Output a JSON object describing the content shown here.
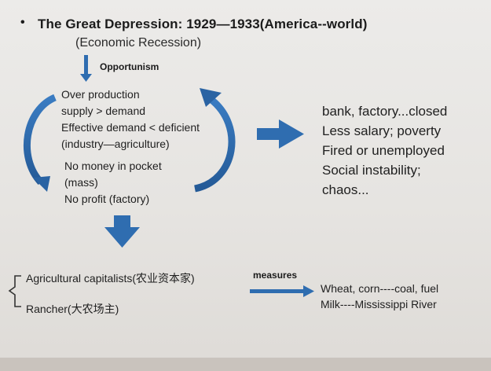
{
  "slide": {
    "bullet": "•",
    "title": "The Great Depression: 1929—1933(America--world)",
    "subtitle": "(Economic Recession)",
    "opportunism_label": "Opportunism",
    "causes": [
      "Over production",
      "supply > demand",
      "Effective demand < deficient",
      "(industry—agriculture)",
      "No money in pocket",
      "(mass)",
      "No profit (factory)"
    ],
    "effects": [
      "bank, factory...closed",
      "Less salary; poverty",
      "Fired or unemployed",
      "Social instability;",
      "chaos..."
    ],
    "groups": [
      "Agricultural capitalists(农业资本家)",
      "Rancher(大农场主)"
    ],
    "measures_label": "measures",
    "results": [
      "Wheat, corn----coal, fuel",
      "Milk----Mississippi River"
    ]
  },
  "colors": {
    "arrow_blue": "#2f6db0",
    "arrow_blue_dark": "#1f4f8a",
    "text": "#1b1b1b"
  }
}
